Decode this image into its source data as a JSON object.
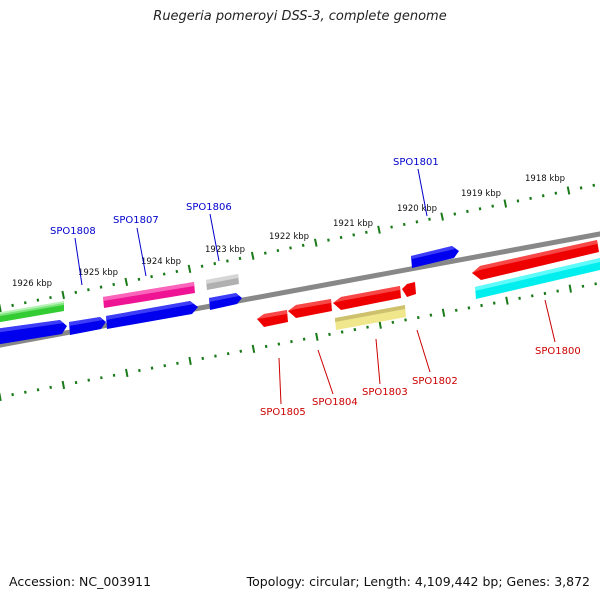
{
  "title": "Ruegeria pomeroyi DSS-3, complete genome",
  "footer": {
    "accession": "Accession: NC_003911",
    "topology": "Topology: circular; Length: 4,109,442 bp; Genes: 3,872"
  },
  "kbp_labels": [
    "1926 kbp",
    "1925 kbp",
    "1924 kbp",
    "1923 kbp",
    "1922 kbp",
    "1921 kbp",
    "1920 kbp",
    "1919 kbp",
    "1918 kbp"
  ],
  "forward_gene_labels": [
    "SPO1808",
    "SPO1807",
    "SPO1806",
    "SPO1801"
  ],
  "reverse_gene_labels": [
    "SPO1805",
    "SPO1804",
    "SPO1803",
    "SPO1802",
    "SPO1800"
  ],
  "colors": {
    "backbone": "#888888",
    "forward_label": "#0000cc",
    "reverse_label": "#cc0000",
    "ticks": "#1a7a1a",
    "blue_gene": "#0000ee",
    "red_gene": "#ee0000",
    "magenta_gene": "#ee1493",
    "green_gene": "#33cc33",
    "gray_gene": "#b0b0b0",
    "khaki_gene": "#f0e68c",
    "cyan_gene": "#00eeee"
  }
}
